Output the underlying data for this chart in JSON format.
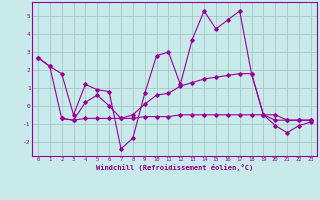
{
  "bg_color": "#c8eaea",
  "grid_color": "#a8c8c8",
  "line_color": "#990099",
  "marker_color": "#990099",
  "xlabel": "Windchill (Refroidissement éolien,°C)",
  "xlabel_color": "#880088",
  "ylim": [
    -2.8,
    5.8
  ],
  "xlim": [
    -0.5,
    23.5
  ],
  "yticks": [
    -2,
    -1,
    0,
    1,
    2,
    3,
    4,
    5
  ],
  "xticks": [
    0,
    1,
    2,
    3,
    4,
    5,
    6,
    7,
    8,
    9,
    10,
    11,
    12,
    13,
    14,
    15,
    16,
    17,
    18,
    19,
    20,
    21,
    22,
    23
  ],
  "series1_x": [
    0,
    1,
    2,
    3,
    4,
    5,
    6,
    7,
    8,
    9,
    10,
    11,
    12,
    13,
    14,
    15,
    16,
    17,
    18,
    19,
    20,
    21,
    22,
    23
  ],
  "series1_y": [
    2.7,
    2.2,
    1.8,
    -0.5,
    1.2,
    0.9,
    0.8,
    -2.4,
    -1.8,
    0.7,
    2.8,
    3.0,
    1.2,
    3.7,
    5.3,
    4.3,
    4.8,
    5.3,
    1.8,
    -0.5,
    -1.1,
    -1.5,
    -1.1,
    -0.9
  ],
  "series2_x": [
    0,
    1,
    2,
    3,
    4,
    5,
    6,
    7,
    8,
    9,
    10,
    11,
    12,
    13,
    14,
    15,
    16,
    17,
    18,
    19,
    20,
    21,
    22,
    23
  ],
  "series2_y": [
    2.7,
    2.2,
    -0.7,
    -0.8,
    0.2,
    0.6,
    0.0,
    -0.7,
    -0.5,
    0.1,
    0.6,
    0.7,
    1.1,
    1.3,
    1.5,
    1.6,
    1.7,
    1.8,
    1.8,
    -0.5,
    -0.8,
    -0.8,
    -0.8,
    -0.8
  ],
  "series3_x": [
    2,
    3,
    4,
    5,
    6,
    7,
    8,
    9,
    10,
    11,
    12,
    13,
    14,
    15,
    16,
    17,
    18,
    19,
    20,
    21,
    22,
    23
  ],
  "series3_y": [
    -0.7,
    -0.8,
    -0.7,
    -0.7,
    -0.7,
    -0.7,
    -0.7,
    -0.6,
    -0.6,
    -0.6,
    -0.5,
    -0.5,
    -0.5,
    -0.5,
    -0.5,
    -0.5,
    -0.5,
    -0.5,
    -0.5,
    -0.8,
    -0.8,
    -0.8
  ]
}
